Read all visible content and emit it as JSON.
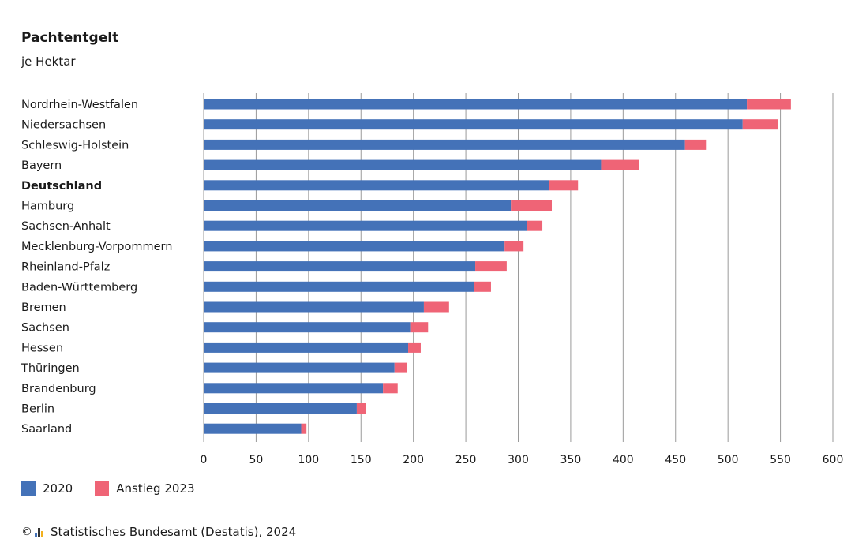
{
  "header": {
    "title": "Pachtentgelt",
    "subtitle": "je Hektar"
  },
  "legend": {
    "items": [
      {
        "label": "2020",
        "color": "#4472b8"
      },
      {
        "label": "Anstieg 2023",
        "color": "#ef6476"
      }
    ]
  },
  "footer": {
    "copyright_symbol": "©",
    "source": "Statistisches Bundesamt (Destatis), 2024",
    "logo_icon": "destatis-logo-icon"
  },
  "chart_data": {
    "type": "bar",
    "orientation": "horizontal",
    "stacked": true,
    "title": "Pachtentgelt",
    "subtitle": "je Hektar",
    "xlim": [
      0,
      600
    ],
    "xticks": [
      0,
      50,
      100,
      150,
      200,
      250,
      300,
      350,
      400,
      450,
      500,
      550,
      600
    ],
    "grid": true,
    "legend_position": "bottom-left",
    "categories": [
      "Nordrhein-Westfalen",
      "Niedersachsen",
      "Schleswig-Holstein",
      "Bayern",
      "Deutschland",
      "Hamburg",
      "Sachsen-Anhalt",
      "Mecklenburg-Vorpommern",
      "Rheinland-Pfalz",
      "Baden-Württemberg",
      "Bremen",
      "Sachsen",
      "Hessen",
      "Thüringen",
      "Brandenburg",
      "Berlin",
      "Saarland"
    ],
    "bold_categories": [
      "Deutschland"
    ],
    "series": [
      {
        "name": "2020",
        "color": "#4472b8",
        "values": [
          518,
          514,
          459,
          379,
          329,
          293,
          308,
          287,
          259,
          258,
          210,
          197,
          195,
          182,
          171,
          146,
          93
        ]
      },
      {
        "name": "Anstieg 2023",
        "color": "#ef6476",
        "values": [
          42,
          34,
          20,
          36,
          28,
          39,
          15,
          18,
          30,
          16,
          24,
          17,
          12,
          12,
          14,
          9,
          5
        ]
      }
    ]
  }
}
